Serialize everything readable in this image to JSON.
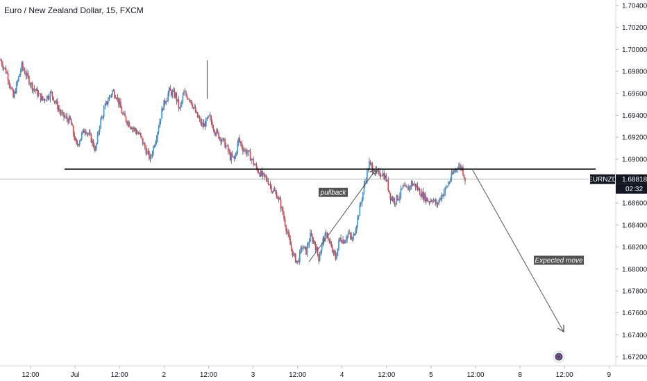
{
  "header": {
    "title": "Euro / New Zealand Dollar, 15, FXCM"
  },
  "chart_data": {
    "type": "candlestick",
    "symbol": "EURNZD",
    "interval": "15",
    "source": "FXCM",
    "ylim": [
      1.72,
      1.704
    ],
    "y_ticks": [
      "1.70400",
      "1.70200",
      "1.70000",
      "1.69800",
      "1.69600",
      "1.69400",
      "1.69200",
      "1.69000",
      "1.68800",
      "1.68600",
      "1.68400",
      "1.68200",
      "1.68000",
      "1.67800",
      "1.67600",
      "1.67400",
      "1.67200"
    ],
    "y_tick_values": [
      1.704,
      1.702,
      1.7,
      1.698,
      1.696,
      1.694,
      1.692,
      1.69,
      1.688,
      1.686,
      1.684,
      1.682,
      1.68,
      1.678,
      1.676,
      1.674,
      1.672
    ],
    "x_ticks": [
      "12:00",
      "Jul",
      "12:00",
      "2",
      "12:00",
      "3",
      "12:00",
      "4",
      "12:00",
      "5",
      "12:00",
      "8",
      "12:00",
      "9"
    ],
    "price_badge": {
      "label": "EURNZD",
      "value": "1.68818",
      "countdown": "02:32"
    },
    "price_path": [
      [
        0,
        1.699
      ],
      [
        6,
        1.6978
      ],
      [
        12,
        1.6956
      ],
      [
        20,
        1.6985
      ],
      [
        30,
        1.6966
      ],
      [
        40,
        1.6954
      ],
      [
        48,
        1.696
      ],
      [
        58,
        1.694
      ],
      [
        66,
        1.6935
      ],
      [
        72,
        1.6912
      ],
      [
        80,
        1.6928
      ],
      [
        86,
        1.6918
      ],
      [
        90,
        1.6908
      ],
      [
        94,
        1.6932
      ],
      [
        100,
        1.695
      ],
      [
        106,
        1.6962
      ],
      [
        110,
        1.6958
      ],
      [
        116,
        1.694
      ],
      [
        124,
        1.693
      ],
      [
        132,
        1.6922
      ],
      [
        138,
        1.6908
      ],
      [
        142,
        1.69
      ],
      [
        148,
        1.6922
      ],
      [
        154,
        1.6948
      ],
      [
        160,
        1.6962
      ],
      [
        166,
        1.6958
      ],
      [
        170,
        1.6945
      ],
      [
        174,
        1.696
      ],
      [
        180,
        1.6955
      ],
      [
        186,
        1.694
      ],
      [
        192,
        1.693
      ],
      [
        198,
        1.6938
      ],
      [
        204,
        1.6925
      ],
      [
        210,
        1.6918
      ],
      [
        214,
        1.6912
      ],
      [
        218,
        1.6902
      ],
      [
        222,
        1.69
      ],
      [
        226,
        1.6918
      ],
      [
        230,
        1.691
      ],
      [
        236,
        1.6904
      ],
      [
        242,
        1.6893
      ],
      [
        248,
        1.6885
      ],
      [
        254,
        1.688
      ],
      [
        258,
        1.6872
      ],
      [
        262,
        1.6868
      ],
      [
        266,
        1.6858
      ],
      [
        270,
        1.6842
      ],
      [
        274,
        1.6825
      ],
      [
        278,
        1.6812
      ],
      [
        282,
        1.6806
      ],
      [
        286,
        1.682
      ],
      [
        290,
        1.6816
      ],
      [
        294,
        1.683
      ],
      [
        298,
        1.6824
      ],
      [
        302,
        1.681
      ],
      [
        306,
        1.6826
      ],
      [
        310,
        1.6832
      ],
      [
        314,
        1.6818
      ],
      [
        318,
        1.681
      ],
      [
        322,
        1.6828
      ],
      [
        326,
        1.6826
      ],
      [
        330,
        1.6832
      ],
      [
        334,
        1.6826
      ],
      [
        338,
        1.6842
      ],
      [
        342,
        1.686
      ],
      [
        346,
        1.688
      ],
      [
        350,
        1.6896
      ],
      [
        354,
        1.689
      ],
      [
        358,
        1.6886
      ],
      [
        362,
        1.6888
      ],
      [
        366,
        1.6882
      ],
      [
        370,
        1.6866
      ],
      [
        374,
        1.6862
      ],
      [
        378,
        1.6866
      ],
      [
        382,
        1.6874
      ],
      [
        386,
        1.6872
      ],
      [
        390,
        1.6878
      ],
      [
        394,
        1.6876
      ],
      [
        398,
        1.687
      ],
      [
        402,
        1.6866
      ],
      [
        406,
        1.6862
      ],
      [
        410,
        1.6864
      ],
      [
        414,
        1.6858
      ],
      [
        418,
        1.6866
      ],
      [
        422,
        1.6872
      ],
      [
        426,
        1.688
      ],
      [
        430,
        1.6888
      ],
      [
        434,
        1.6894
      ],
      [
        438,
        1.6892
      ],
      [
        441,
        1.6882
      ]
    ],
    "annotations": [
      {
        "type": "horizontal-line",
        "level": 1.6891,
        "from": 93,
        "to": 858
      },
      {
        "type": "label",
        "text": "pullback",
        "x_index": 268,
        "price": 1.6863
      },
      {
        "type": "label",
        "text": "Expected move",
        "x_index": 500,
        "price": 1.6808
      }
    ]
  }
}
